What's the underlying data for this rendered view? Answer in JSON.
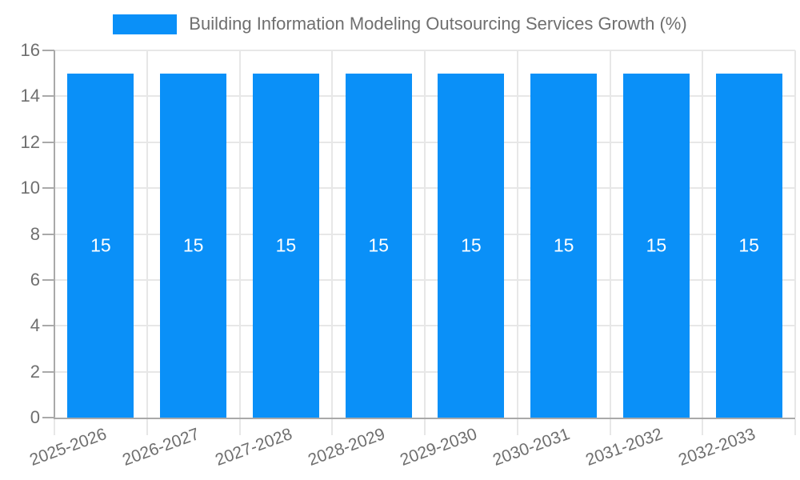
{
  "legend": {
    "label": "Building Information Modeling Outsourcing Services Growth (%)"
  },
  "chart_data": {
    "type": "bar",
    "title": "Building Information Modeling Outsourcing Services Growth (%)",
    "categories": [
      "2025-2026",
      "2026-2027",
      "2027-2028",
      "2028-2029",
      "2029-2030",
      "2030-2031",
      "2031-2032",
      "2032-2033"
    ],
    "values": [
      15,
      15,
      15,
      15,
      15,
      15,
      15,
      15
    ],
    "bar_value_labels": [
      "15",
      "15",
      "15",
      "15",
      "15",
      "15",
      "15",
      "15"
    ],
    "xlabel": "",
    "ylabel": "",
    "ylim": [
      0,
      16
    ],
    "yticks": [
      0,
      2,
      4,
      6,
      8,
      10,
      12,
      14,
      16
    ],
    "grid": true,
    "legend_position": "top",
    "x_tick_label_rotation_deg": -20,
    "colors": {
      "bar": "#0A90F8",
      "bar_label": "#FFFFFF",
      "grid": "#E7E7E7",
      "axis": "#A9A9A9",
      "tick_label": "#6F6F6F",
      "title": "#6F6F6F",
      "background": "#FFFFFF"
    }
  }
}
